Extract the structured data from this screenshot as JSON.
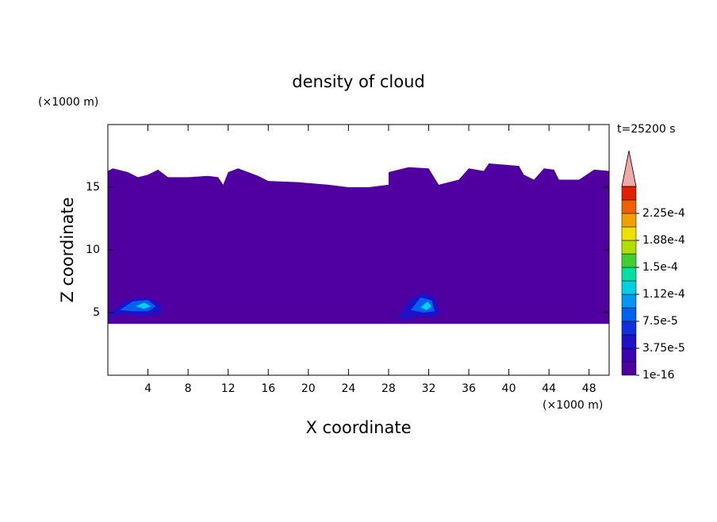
{
  "chart_data": {
    "type": "contour",
    "title": "density of cloud",
    "x_label": "X coordinate",
    "y_label": "Z coordinate",
    "x_unit": "(×1000 m)",
    "y_unit": "(×1000 m)",
    "time_label": "t=25200 s",
    "xlim": [
      0,
      50
    ],
    "ylim": [
      0,
      20
    ],
    "xticks": [
      4,
      8,
      12,
      16,
      20,
      24,
      28,
      32,
      36,
      40,
      44,
      48
    ],
    "yticks": [
      5,
      10,
      15
    ],
    "levels": [
      1e-16,
      1.875e-05,
      3.75e-05,
      5.625e-05,
      7.5e-05,
      9.375e-05,
      0.0001125,
      0.00013125,
      0.00015,
      0.00016875,
      0.0001875,
      0.00020625,
      0.000225,
      0.00024375
    ],
    "colors": [
      "#5000a0",
      "#3c00b4",
      "#2010c8",
      "#1030e0",
      "#0060f0",
      "#0098f0",
      "#00d0e0",
      "#00e0a0",
      "#40d030",
      "#b0e000",
      "#f0e000",
      "#f0a000",
      "#f06000",
      "#e02000"
    ],
    "extend_color": "#f0a8a8",
    "colorbar_ticks": [
      {
        "value": 1e-16,
        "label": "1e-16"
      },
      {
        "value": 3.75e-05,
        "label": "3.75e-5"
      },
      {
        "value": 7.5e-05,
        "label": "7.5e-5"
      },
      {
        "value": 0.0001125,
        "label": "1.12e-4"
      },
      {
        "value": 0.00015,
        "label": "1.5e-4"
      },
      {
        "value": 0.0001875,
        "label": "1.88e-4"
      },
      {
        "value": 0.000225,
        "label": "2.25e-4"
      }
    ],
    "regions": [
      {
        "level": 1e-16,
        "x": [
          0,
          50,
          50,
          48.5,
          47,
          45,
          44.5,
          43.5,
          42.5,
          41.5,
          41,
          38,
          37.5,
          36,
          35,
          33,
          32,
          30,
          28,
          28,
          26,
          24,
          22,
          19,
          16,
          15,
          13,
          12,
          11.5,
          11,
          10,
          8,
          6,
          5,
          4,
          3,
          2,
          0.5,
          0
        ],
        "z": [
          4.1,
          4.1,
          16.3,
          16.4,
          15.6,
          15.6,
          16.4,
          16.5,
          15.6,
          16,
          16.7,
          16.9,
          16.3,
          16.5,
          15.6,
          15.2,
          16.5,
          16.6,
          16.2,
          15.2,
          15,
          15,
          15.2,
          15.4,
          15.5,
          15.9,
          16.5,
          16.2,
          15.2,
          15.8,
          15.9,
          15.8,
          15.8,
          16.4,
          16,
          15.8,
          16.2,
          16.5,
          16.3
        ]
      },
      {
        "level": 3.75e-05,
        "x": [
          0.2,
          1.5,
          3,
          4.5,
          5.5,
          5.2,
          3.5,
          1.5,
          0.2
        ],
        "z": [
          4.8,
          5.8,
          6.2,
          6.1,
          5.3,
          4.9,
          4.7,
          4.9,
          4.6
        ]
      },
      {
        "level": 7.5e-05,
        "x": [
          1.2,
          2.5,
          4,
          4.8,
          4,
          2.5
        ],
        "z": [
          5.2,
          5.9,
          6,
          5.5,
          5.1,
          5.1
        ]
      },
      {
        "level": 0.0001125,
        "x": [
          2.8,
          3.6,
          4.3,
          3.6
        ],
        "z": [
          5.5,
          5.8,
          5.5,
          5.3
        ]
      },
      {
        "level": 3.75e-05,
        "x": [
          29,
          30,
          31.5,
          32.5,
          33.2,
          32.5,
          31,
          29.5
        ],
        "z": [
          4.6,
          6,
          6.6,
          6.3,
          5,
          4.6,
          4.7,
          4.4
        ]
      },
      {
        "level": 7.5e-05,
        "x": [
          30.2,
          31.2,
          32.3,
          32.6,
          31.5
        ],
        "z": [
          5.2,
          6.2,
          6,
          5.1,
          5
        ]
      },
      {
        "level": 0.0001125,
        "x": [
          31.2,
          31.9,
          32.3,
          31.8
        ],
        "z": [
          5.4,
          5.9,
          5.5,
          5.2
        ]
      }
    ]
  }
}
